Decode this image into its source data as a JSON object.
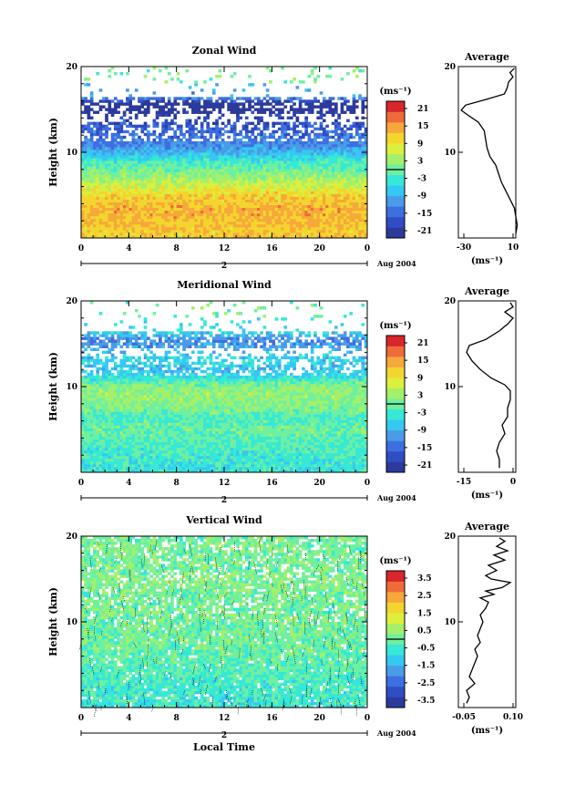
{
  "figure": {
    "x_axis_label": "Local Time",
    "date_label": "Aug 2004",
    "day_label": "2"
  },
  "chart_data": [
    {
      "type": "heatmap",
      "title": "Zonal Wind",
      "ylabel": "Height (km)",
      "xlim": [
        0,
        24
      ],
      "ylim": [
        0,
        20
      ],
      "x_ticks": [
        "0",
        "4",
        "8",
        "12",
        "16",
        "20",
        "0"
      ],
      "y_ticks": [
        "10",
        "20"
      ],
      "colorbar": {
        "unit_label": "(ms⁻¹)",
        "tick_labels": [
          "21",
          "15",
          "9",
          "3",
          "-3",
          "-9",
          "-15",
          "-21"
        ],
        "range": [
          -24,
          24
        ]
      },
      "height_profile_km": [
        0.5,
        2,
        3.5,
        5,
        6.5,
        7.5,
        9,
        10,
        11,
        12,
        13,
        14.5,
        15.5,
        16.5,
        18
      ],
      "time_mean_ms": [
        12,
        13,
        14,
        11,
        5,
        2,
        -3,
        -9,
        -13,
        -15,
        -17,
        -22,
        -27,
        -10,
        null
      ],
      "average_profile": {
        "title": "Average",
        "xlabel": "(ms⁻¹)",
        "x_ticks": [
          "-30",
          "10"
        ],
        "y_ticks": [
          "10",
          "20"
        ],
        "xlim": [
          -30,
          10
        ],
        "points": [
          [
            10,
            0.5
          ],
          [
            11,
            1.5
          ],
          [
            10,
            2.5
          ],
          [
            9,
            3.5
          ],
          [
            6,
            4.5
          ],
          [
            3,
            5.5
          ],
          [
            0,
            6.5
          ],
          [
            -2,
            7.5
          ],
          [
            -4,
            8.5
          ],
          [
            -8,
            9.5
          ],
          [
            -10,
            10.5
          ],
          [
            -11,
            11.5
          ],
          [
            -12,
            12.5
          ],
          [
            -16,
            13.5
          ],
          [
            -23,
            14.3
          ],
          [
            -28,
            14.9
          ],
          [
            -25,
            15.5
          ],
          [
            -10,
            16.2
          ],
          [
            2,
            16.8
          ],
          [
            4,
            17.5
          ],
          [
            5,
            18.2
          ],
          [
            8,
            18.8
          ],
          [
            6,
            19.3
          ],
          [
            9,
            19.8
          ]
        ]
      }
    },
    {
      "type": "heatmap",
      "title": "Meridional Wind",
      "ylabel": "Height (km)",
      "xlim": [
        0,
        24
      ],
      "ylim": [
        0,
        20
      ],
      "x_ticks": [
        "0",
        "4",
        "8",
        "12",
        "16",
        "20",
        "0"
      ],
      "y_ticks": [
        "10",
        "20"
      ],
      "colorbar": {
        "unit_label": "(ms⁻¹)",
        "tick_labels": [
          "21",
          "15",
          "9",
          "3",
          "-3",
          "-9",
          "-15",
          "-21"
        ],
        "range": [
          -24,
          24
        ]
      },
      "height_profile_km": [
        0.5,
        2,
        3.5,
        5,
        6.5,
        7.5,
        9,
        10,
        11,
        12,
        13,
        14.5,
        15.5,
        16.5,
        18
      ],
      "time_mean_ms": [
        -4,
        -3,
        -2,
        0,
        -2,
        1,
        3,
        2,
        -4,
        -8,
        -6,
        -10,
        -13,
        -5,
        null
      ],
      "average_profile": {
        "title": "Average",
        "xlabel": "(ms⁻¹)",
        "x_ticks": [
          "-15",
          "0"
        ],
        "y_ticks": [
          "10",
          "20"
        ],
        "xlim": [
          -18,
          3
        ],
        "points": [
          [
            -3,
            0.5
          ],
          [
            -3,
            1.5
          ],
          [
            -4,
            2.5
          ],
          [
            -3,
            3.5
          ],
          [
            -1,
            4.5
          ],
          [
            -2,
            5.5
          ],
          [
            0,
            6.5
          ],
          [
            0,
            7.5
          ],
          [
            1,
            8.5
          ],
          [
            1,
            9.5
          ],
          [
            -1,
            10.2
          ],
          [
            -6,
            11
          ],
          [
            -10,
            12
          ],
          [
            -13,
            13
          ],
          [
            -15,
            14
          ],
          [
            -14,
            14.8
          ],
          [
            -8,
            15.5
          ],
          [
            -3,
            16.5
          ],
          [
            0,
            17.3
          ],
          [
            2,
            18
          ],
          [
            -1,
            18.7
          ],
          [
            2,
            19.3
          ],
          [
            1,
            19.8
          ]
        ]
      }
    },
    {
      "type": "heatmap",
      "title": "Vertical Wind",
      "ylabel": "Height (km)",
      "xlim": [
        0,
        24
      ],
      "ylim": [
        0,
        20
      ],
      "x_ticks": [
        "0",
        "4",
        "8",
        "12",
        "16",
        "20",
        "0"
      ],
      "y_ticks": [
        "10",
        "20"
      ],
      "colorbar": {
        "unit_label": "(ms⁻¹)",
        "tick_labels": [
          "3.5",
          "2.5",
          "1.5",
          "0.5",
          "-0.5",
          "-1.5",
          "-2.5",
          "-3.5"
        ],
        "range": [
          -4,
          4
        ]
      },
      "height_profile_km": [
        0.5,
        2,
        3.5,
        5,
        6.5,
        7.5,
        9,
        10,
        11,
        12,
        13,
        14.5,
        15.5,
        16.5,
        18
      ],
      "time_mean_ms": [
        -0.6,
        -0.5,
        -0.4,
        -0.2,
        -0.1,
        0,
        0,
        0,
        0.1,
        0,
        0.1,
        0.2,
        0.1,
        0.1,
        0.1
      ],
      "average_profile": {
        "title": "Average",
        "xlabel": "(ms⁻¹)",
        "x_ticks": [
          "-0.05",
          "0.10"
        ],
        "y_ticks": [
          "10",
          "20"
        ],
        "xlim": [
          -0.08,
          0.13
        ],
        "points": [
          [
            -0.05,
            0.5
          ],
          [
            -0.04,
            1.2
          ],
          [
            -0.05,
            2
          ],
          [
            -0.02,
            2.8
          ],
          [
            -0.04,
            3.6
          ],
          [
            -0.03,
            4.4
          ],
          [
            -0.02,
            5.2
          ],
          [
            -0.01,
            6
          ],
          [
            -0.02,
            6.8
          ],
          [
            0,
            7.6
          ],
          [
            -0.01,
            8.4
          ],
          [
            0,
            9.2
          ],
          [
            0.01,
            10
          ],
          [
            0,
            10.8
          ],
          [
            0.02,
            11.6
          ],
          [
            0.03,
            12.3
          ],
          [
            0,
            12.8
          ],
          [
            0.05,
            13.2
          ],
          [
            0.02,
            13.6
          ],
          [
            0.08,
            14
          ],
          [
            0.11,
            14.6
          ],
          [
            0.04,
            15
          ],
          [
            0.02,
            15.4
          ],
          [
            0.06,
            16
          ],
          [
            0.03,
            16.6
          ],
          [
            0.09,
            17.2
          ],
          [
            0.05,
            17.8
          ],
          [
            0.1,
            18.3
          ],
          [
            0.06,
            18.8
          ],
          [
            0.09,
            19.4
          ],
          [
            0.07,
            19.8
          ]
        ]
      }
    }
  ]
}
